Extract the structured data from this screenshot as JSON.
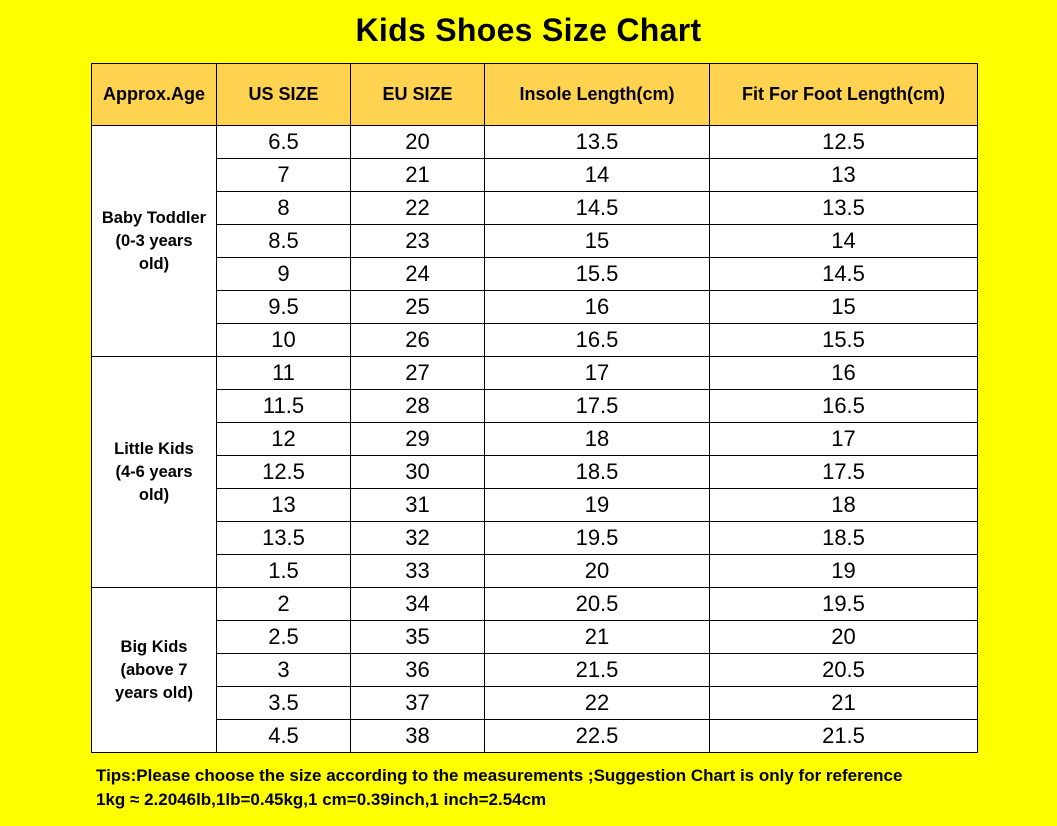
{
  "title": "Kids Shoes Size Chart",
  "colors": {
    "background": "#FFFF00",
    "header_bg": "#FFD24F",
    "cell_bg": "#FFFFFF",
    "border": "#000000"
  },
  "table": {
    "headers": [
      "Approx.Age",
      "US  SIZE",
      "EU SIZE",
      "Insole Length(cm)",
      "Fit For Foot Length(cm)"
    ],
    "groups": [
      {
        "age_line1": "Baby Toddler",
        "age_line2": "(0-3 years",
        "age_line3": "old)",
        "rows": [
          [
            "6.5",
            "20",
            "13.5",
            "12.5"
          ],
          [
            "7",
            "21",
            "14",
            "13"
          ],
          [
            "8",
            "22",
            "14.5",
            "13.5"
          ],
          [
            "8.5",
            "23",
            "15",
            "14"
          ],
          [
            "9",
            "24",
            "15.5",
            "14.5"
          ],
          [
            "9.5",
            "25",
            "16",
            "15"
          ],
          [
            "10",
            "26",
            "16.5",
            "15.5"
          ]
        ]
      },
      {
        "age_line1": "Little Kids",
        "age_line2": "(4-6 years",
        "age_line3": "old)",
        "rows": [
          [
            "11",
            "27",
            "17",
            "16"
          ],
          [
            "11.5",
            "28",
            "17.5",
            "16.5"
          ],
          [
            "12",
            "29",
            "18",
            "17"
          ],
          [
            "12.5",
            "30",
            "18.5",
            "17.5"
          ],
          [
            "13",
            "31",
            "19",
            "18"
          ],
          [
            "13.5",
            "32",
            "19.5",
            "18.5"
          ],
          [
            "1.5",
            "33",
            "20",
            "19"
          ]
        ]
      },
      {
        "age_line1": "Big Kids",
        "age_line2": "(above 7",
        "age_line3": "years old)",
        "rows": [
          [
            "2",
            "34",
            "20.5",
            "19.5"
          ],
          [
            "2.5",
            "35",
            "21",
            "20"
          ],
          [
            "3",
            "36",
            "21.5",
            "20.5"
          ],
          [
            "3.5",
            "37",
            "22",
            "21"
          ],
          [
            "4.5",
            "38",
            "22.5",
            "21.5"
          ]
        ]
      }
    ]
  },
  "tips": {
    "line1": "Tips:Please choose the size according to the measurements ;Suggestion Chart is only for reference",
    "line2": "1kg ≈ 2.2046lb,1lb=0.45kg,1 cm=0.39inch,1 inch=2.54cm"
  }
}
